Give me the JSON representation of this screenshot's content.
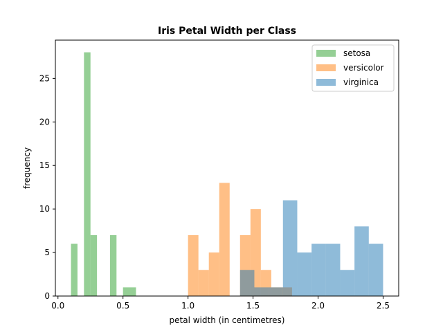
{
  "chart_data": {
    "type": "bar",
    "title": "Iris Petal Width per Class",
    "xlabel": "petal width (in centimetres)",
    "ylabel": "frequency",
    "xlim": [
      -0.02,
      2.62
    ],
    "ylim": [
      0,
      29.4
    ],
    "xticks": [
      0.0,
      0.5,
      1.0,
      1.5,
      2.0,
      2.5
    ],
    "xtick_labels": [
      "0.0",
      "0.5",
      "1.0",
      "1.5",
      "2.0",
      "2.5"
    ],
    "yticks": [
      0,
      5,
      10,
      15,
      20,
      25
    ],
    "ytick_labels": [
      "0",
      "5",
      "10",
      "15",
      "20",
      "25"
    ],
    "grid": false,
    "legend": "top-right",
    "series": [
      {
        "name": "setosa",
        "color": "#2ca02c",
        "opacity": 0.5,
        "bins": [
          [
            0.1,
            0.15,
            6
          ],
          [
            0.2,
            0.25,
            28
          ],
          [
            0.25,
            0.3,
            7
          ],
          [
            0.4,
            0.45,
            7
          ],
          [
            0.5,
            0.6,
            1
          ]
        ]
      },
      {
        "name": "versicolor",
        "color": "#ff7f0e",
        "opacity": 0.5,
        "bins": [
          [
            1.0,
            1.08,
            7
          ],
          [
            1.08,
            1.16,
            3
          ],
          [
            1.16,
            1.24,
            5
          ],
          [
            1.24,
            1.32,
            13
          ],
          [
            1.32,
            1.4,
            0
          ],
          [
            1.4,
            1.48,
            7
          ],
          [
            1.48,
            1.56,
            10
          ],
          [
            1.56,
            1.64,
            3
          ],
          [
            1.64,
            1.72,
            1
          ],
          [
            1.72,
            1.8,
            1
          ]
        ]
      },
      {
        "name": "virginica",
        "color": "#1f77b4",
        "opacity": 0.5,
        "bins": [
          [
            1.4,
            1.51,
            3
          ],
          [
            1.51,
            1.62,
            1
          ],
          [
            1.62,
            1.73,
            1
          ],
          [
            1.73,
            1.84,
            11
          ],
          [
            1.84,
            1.95,
            5
          ],
          [
            1.95,
            2.06,
            6
          ],
          [
            2.06,
            2.17,
            6
          ],
          [
            2.17,
            2.28,
            3
          ],
          [
            2.28,
            2.39,
            8
          ],
          [
            2.39,
            2.5,
            6
          ]
        ]
      }
    ]
  }
}
